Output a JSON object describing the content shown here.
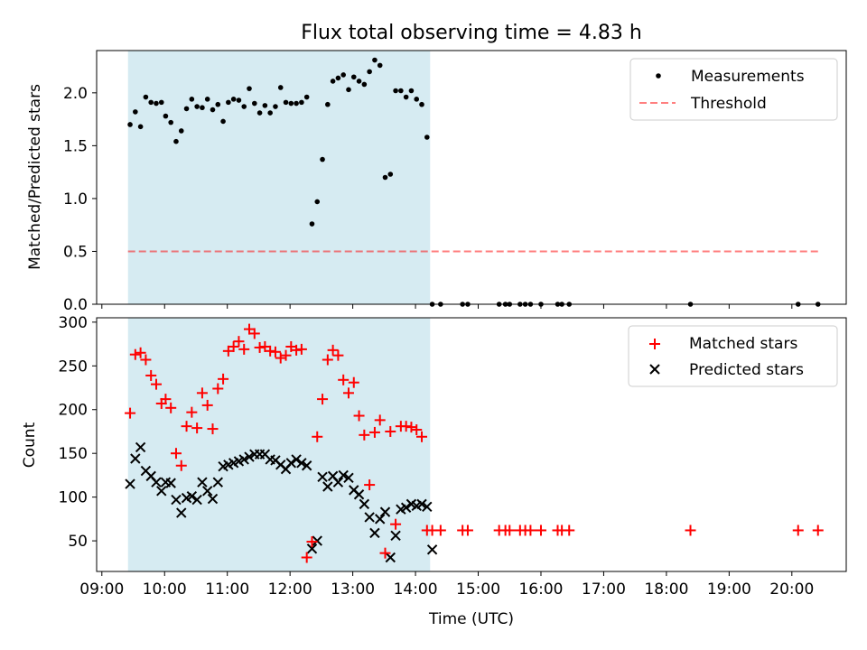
{
  "chart_data": [
    {
      "type": "scatter",
      "title": "Flux total observing time = 4.83 h",
      "xlabel": "",
      "ylabel": "Matched/Predicted stars",
      "xlim": [
        "08:55",
        "20:52"
      ],
      "ylim": [
        0,
        2.4
      ],
      "yticks": [
        "0.0",
        "0.5",
        "1.0",
        "1.5",
        "2.0"
      ],
      "legend_position": "top-right",
      "highlight_span": [
        "09:25",
        "14:14"
      ],
      "colors": {
        "span": "#add8e6",
        "points": "#000000",
        "threshold": "#ff0000"
      },
      "threshold": {
        "name": "Threshold",
        "value": 0.5,
        "x": [
          "09:25",
          "20:25"
        ]
      },
      "series": [
        {
          "name": "Measurements",
          "x": [
            "09:27",
            "09:32",
            "09:37",
            "09:42",
            "09:47",
            "09:52",
            "09:57",
            "10:01",
            "10:06",
            "10:11",
            "10:16",
            "10:21",
            "10:26",
            "10:31",
            "10:36",
            "10:41",
            "10:46",
            "10:51",
            "10:56",
            "11:01",
            "11:06",
            "11:11",
            "11:16",
            "11:21",
            "11:26",
            "11:31",
            "11:36",
            "11:41",
            "11:46",
            "11:51",
            "11:56",
            "12:01",
            "12:06",
            "12:11",
            "12:16",
            "12:21",
            "12:26",
            "12:31",
            "12:36",
            "12:41",
            "12:46",
            "12:51",
            "12:56",
            "13:01",
            "13:06",
            "13:11",
            "13:16",
            "13:21",
            "13:26",
            "13:31",
            "13:36",
            "13:41",
            "13:46",
            "13:51",
            "13:56",
            "14:01",
            "14:06",
            "14:11",
            "14:16",
            "14:24",
            "14:45",
            "14:50",
            "15:20",
            "15:26",
            "15:30",
            "15:40",
            "15:45",
            "15:50",
            "16:00",
            "16:16",
            "16:20",
            "16:27",
            "18:23",
            "20:06",
            "20:25"
          ],
          "y": [
            1.7,
            1.82,
            1.68,
            1.96,
            1.91,
            1.9,
            1.91,
            1.78,
            1.72,
            1.54,
            1.64,
            1.85,
            1.94,
            1.87,
            1.86,
            1.94,
            1.84,
            1.89,
            1.73,
            1.91,
            1.94,
            1.93,
            1.87,
            2.04,
            1.9,
            1.81,
            1.88,
            1.81,
            1.87,
            2.05,
            1.91,
            1.9,
            1.9,
            1.91,
            1.96,
            0.76,
            0.97,
            1.37,
            1.89,
            2.11,
            2.14,
            2.17,
            2.03,
            2.15,
            2.11,
            2.08,
            2.2,
            2.31,
            2.26,
            1.2,
            1.23,
            2.02,
            2.02,
            1.96,
            2.02,
            1.94,
            1.89,
            1.58,
            0,
            0,
            0,
            0,
            0,
            0,
            0,
            0,
            0,
            0,
            0,
            0,
            0,
            0,
            0,
            0,
            0
          ]
        }
      ]
    },
    {
      "type": "scatter",
      "title": "",
      "xlabel": "Time (UTC)",
      "ylabel": "Count",
      "xlim": [
        "08:55",
        "20:52"
      ],
      "ylim": [
        15,
        305
      ],
      "yticks": [
        "50",
        "100",
        "150",
        "200",
        "250",
        "300"
      ],
      "xticks": [
        "09:00",
        "10:00",
        "11:00",
        "12:00",
        "13:00",
        "14:00",
        "15:00",
        "16:00",
        "17:00",
        "18:00",
        "19:00",
        "20:00"
      ],
      "legend_position": "top-right",
      "highlight_span": [
        "09:25",
        "14:14"
      ],
      "colors": {
        "span": "#add8e6",
        "matched": "#ff0000",
        "predicted": "#000000"
      },
      "series": [
        {
          "name": "Matched stars",
          "x": [
            "09:27",
            "09:32",
            "09:37",
            "09:42",
            "09:47",
            "09:52",
            "09:57",
            "10:01",
            "10:06",
            "10:11",
            "10:16",
            "10:21",
            "10:26",
            "10:31",
            "10:36",
            "10:41",
            "10:46",
            "10:51",
            "10:56",
            "11:01",
            "11:06",
            "11:11",
            "11:16",
            "11:21",
            "11:26",
            "11:31",
            "11:36",
            "11:41",
            "11:46",
            "11:51",
            "11:56",
            "12:01",
            "12:06",
            "12:11",
            "12:16",
            "12:21",
            "12:26",
            "12:31",
            "12:36",
            "12:41",
            "12:46",
            "12:51",
            "12:56",
            "13:01",
            "13:06",
            "13:11",
            "13:16",
            "13:21",
            "13:26",
            "13:31",
            "13:36",
            "13:41",
            "13:46",
            "13:51",
            "13:56",
            "14:01",
            "14:06",
            "14:11",
            "14:16",
            "14:24",
            "14:45",
            "14:50",
            "15:20",
            "15:26",
            "15:30",
            "15:40",
            "15:45",
            "15:50",
            "16:00",
            "16:16",
            "16:20",
            "16:27",
            "18:23",
            "20:06",
            "20:25"
          ],
          "y": [
            196,
            263,
            265,
            257,
            239,
            229,
            207,
            212,
            202,
            150,
            136,
            181,
            197,
            179,
            219,
            205,
            178,
            224,
            235,
            267,
            272,
            278,
            269,
            292,
            287,
            271,
            272,
            267,
            266,
            259,
            262,
            272,
            268,
            269,
            31,
            49,
            169,
            212,
            257,
            268,
            262,
            234,
            219,
            231,
            193,
            171,
            114,
            174,
            188,
            36,
            175,
            69,
            181,
            181,
            180,
            177,
            169,
            62,
            62,
            62,
            62,
            62,
            62,
            62,
            62,
            62,
            62,
            62,
            62,
            62,
            62,
            62,
            62,
            62,
            62
          ]
        },
        {
          "name": "Predicted stars",
          "x": [
            "09:27",
            "09:32",
            "09:37",
            "09:42",
            "09:47",
            "09:52",
            "09:57",
            "10:01",
            "10:06",
            "10:11",
            "10:16",
            "10:21",
            "10:26",
            "10:31",
            "10:36",
            "10:41",
            "10:46",
            "10:51",
            "10:56",
            "11:01",
            "11:06",
            "11:11",
            "11:16",
            "11:21",
            "11:26",
            "11:31",
            "11:36",
            "11:41",
            "11:46",
            "11:51",
            "11:56",
            "12:01",
            "12:06",
            "12:11",
            "12:16",
            "12:21",
            "12:26",
            "12:31",
            "12:36",
            "12:41",
            "12:46",
            "12:51",
            "12:56",
            "13:01",
            "13:06",
            "13:11",
            "13:16",
            "13:21",
            "13:26",
            "13:31",
            "13:36",
            "13:41",
            "13:46",
            "13:51",
            "13:56",
            "14:01",
            "14:06",
            "14:11",
            "14:16"
          ],
          "y": [
            115,
            144,
            157,
            130,
            124,
            117,
            107,
            117,
            116,
            97,
            82,
            99,
            101,
            97,
            117,
            107,
            98,
            117,
            135,
            137,
            139,
            141,
            143,
            146,
            149,
            149,
            149,
            143,
            142,
            137,
            132,
            139,
            143,
            139,
            136,
            41,
            50,
            123,
            112,
            124,
            117,
            125,
            122,
            108,
            103,
            92,
            77,
            59,
            75,
            83,
            31,
            56,
            86,
            88,
            92,
            90,
            92,
            89,
            40
          ]
        }
      ]
    }
  ]
}
